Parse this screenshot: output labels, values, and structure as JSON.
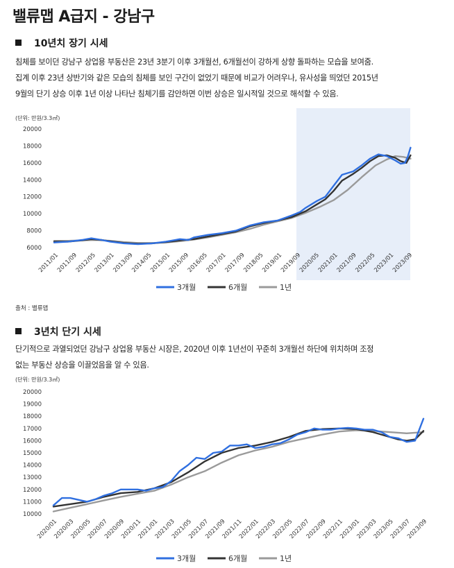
{
  "title": "밸류맵 A급지 - 강남구",
  "section1": {
    "heading": "10년치 장기 시세",
    "lines": [
      "침체를 보이던 강남구 상업용 부동산은 23년 3분기 이후 3개월선, 6개월선이 강하게 상향 돌파하는 모습을 보여줌.",
      "집계 이후 23년 상반기와 같은 모습의 침체를 보인 구간이 없었기 때문에 비교가 어려우나, 유사성을 띄었던 2015년",
      "9월의 단기 상승 이후 1년 이상 나타난 침체기를 감안하면 이번 상승은 일시적일 것으로 해석할 수 있음."
    ],
    "unit": "(단위: 만원/3.3㎡)",
    "source": "출처 : 밸류맵"
  },
  "section2": {
    "heading": "3년치 단기 시세",
    "lines": [
      "단기적으로 과열되었던 강남구 상업용 부동산 시장은, 2020년 이후 1년선이 꾸준히 3개월선 하단에 위치하며 조정",
      "없는 부동산 상승을 이끌었음을 알 수 있음."
    ],
    "unit": "(단위: 만원/3.3㎡)"
  },
  "colors": {
    "m3": "#2f6fe0",
    "m6": "#333333",
    "y1": "#9a9a9a",
    "highlight": "#e7eef9"
  },
  "chart_data": [
    {
      "type": "line",
      "ylim": [
        6000,
        20000
      ],
      "yticks": [
        "20000",
        "18000",
        "16000",
        "14000",
        "12000",
        "10000",
        "8000",
        "6000"
      ],
      "x_labels": [
        "2011/01",
        "2011/09",
        "2012/05",
        "2013/01",
        "2013/09",
        "2014/05",
        "2015/01",
        "2015/09",
        "2016/05",
        "2017/01",
        "2017/09",
        "2018/05",
        "2019/01",
        "2019/09",
        "2020/05",
        "2021/01",
        "2021/09",
        "2022/05",
        "2023/01",
        "2023/09"
      ],
      "highlight_range": [
        "2019/09",
        "2023/09"
      ],
      "series": [
        {
          "name": "3개월",
          "key": "m3",
          "x": [
            2011.0,
            2011.5,
            2012.0,
            2012.33,
            2012.7,
            2013.0,
            2013.5,
            2014.0,
            2014.5,
            2015.0,
            2015.5,
            2015.8,
            2016.0,
            2016.5,
            2017.0,
            2017.5,
            2018.0,
            2018.5,
            2019.0,
            2019.5,
            2019.8,
            2020.0,
            2020.4,
            2020.7,
            2021.0,
            2021.3,
            2021.7,
            2022.0,
            2022.3,
            2022.6,
            2022.9,
            2023.2,
            2023.4,
            2023.55,
            2023.65,
            2023.75
          ],
          "y": [
            6600,
            6700,
            6900,
            7100,
            6900,
            6700,
            6500,
            6400,
            6500,
            6700,
            7000,
            6900,
            7200,
            7500,
            7700,
            8000,
            8600,
            9000,
            9200,
            9800,
            10200,
            10700,
            11500,
            12000,
            13300,
            14600,
            15000,
            15700,
            16500,
            17000,
            16800,
            16300,
            15900,
            16000,
            16700,
            17800
          ]
        },
        {
          "name": "6개월",
          "key": "m6",
          "x": [
            2011.0,
            2011.5,
            2012.0,
            2012.33,
            2012.7,
            2013.0,
            2013.5,
            2014.0,
            2014.5,
            2015.0,
            2015.5,
            2016.0,
            2016.5,
            2017.0,
            2017.5,
            2018.0,
            2018.5,
            2019.0,
            2019.5,
            2020.0,
            2020.4,
            2020.7,
            2021.0,
            2021.3,
            2021.7,
            2022.0,
            2022.3,
            2022.6,
            2022.9,
            2023.2,
            2023.4,
            2023.6,
            2023.75
          ],
          "y": [
            6700,
            6700,
            6850,
            7000,
            6900,
            6750,
            6550,
            6450,
            6500,
            6650,
            6850,
            7000,
            7300,
            7600,
            7900,
            8500,
            8900,
            9200,
            9600,
            10300,
            11100,
            11700,
            12700,
            13900,
            14700,
            15400,
            16200,
            16800,
            16900,
            16600,
            16200,
            16000,
            16900
          ]
        },
        {
          "name": "1년",
          "key": "y1",
          "x": [
            2011.0,
            2011.5,
            2012.0,
            2012.5,
            2013.0,
            2013.5,
            2014.0,
            2014.5,
            2015.0,
            2015.5,
            2016.0,
            2016.5,
            2017.0,
            2017.5,
            2018.0,
            2018.5,
            2019.0,
            2019.5,
            2020.0,
            2020.5,
            2021.0,
            2021.5,
            2022.0,
            2022.5,
            2022.9,
            2023.2,
            2023.5,
            2023.75
          ],
          "y": [
            6800,
            6800,
            6850,
            6900,
            6800,
            6650,
            6550,
            6550,
            6600,
            6750,
            6950,
            7200,
            7500,
            7800,
            8200,
            8700,
            9100,
            9500,
            10100,
            10800,
            11600,
            12800,
            14300,
            15700,
            16400,
            16800,
            16700,
            16500
          ]
        }
      ]
    },
    {
      "type": "line",
      "ylim": [
        10000,
        20000
      ],
      "yticks": [
        "20000",
        "19000",
        "18000",
        "17000",
        "16000",
        "15000",
        "14000",
        "13000",
        "12000",
        "11000",
        "10000"
      ],
      "x_labels": [
        "2020/01",
        "2020/03",
        "2020/05",
        "2020/07",
        "2020/09",
        "2020/11",
        "2021/01",
        "2021/03",
        "2021/05",
        "2021/07",
        "2021/09",
        "2021/11",
        "2022/01",
        "2022/03",
        "2022/05",
        "2022/07",
        "2022/09",
        "2022/11",
        "2023/01",
        "2023/03",
        "2023/05",
        "2023/07",
        "2023/09"
      ],
      "series": [
        {
          "name": "3개월",
          "key": "m3",
          "x": [
            0,
            0.5,
            1,
            2,
            2.5,
            3,
            3.5,
            4,
            4.5,
            5,
            5.5,
            6,
            6.5,
            7,
            7.5,
            8,
            8.5,
            9,
            9.5,
            10,
            10.5,
            11,
            11.5,
            12,
            12.5,
            13,
            13.5,
            14,
            14.5,
            15,
            15.5,
            16,
            16.5,
            17,
            17.5,
            18,
            18.5,
            19,
            19.5,
            20,
            20.5,
            21,
            21.5,
            22
          ],
          "y": [
            10700,
            11300,
            11300,
            11000,
            11200,
            11500,
            11700,
            12000,
            12000,
            12000,
            11900,
            12100,
            12200,
            12700,
            13500,
            14000,
            14600,
            14500,
            15000,
            15100,
            15600,
            15600,
            15700,
            15400,
            15500,
            15700,
            15800,
            16100,
            16500,
            16700,
            17000,
            16900,
            16900,
            17000,
            17050,
            17000,
            16900,
            16900,
            16700,
            16300,
            16200,
            15900,
            16000,
            17800
          ]
        },
        {
          "name": "6개월",
          "key": "m6",
          "x": [
            0,
            1,
            2,
            3,
            4,
            5,
            6,
            7,
            8,
            9,
            10,
            11,
            12,
            13,
            14,
            15,
            16,
            17,
            18,
            19,
            20,
            20.5,
            21,
            21.5,
            22
          ],
          "y": [
            10600,
            10800,
            11000,
            11400,
            11700,
            11800,
            12100,
            12600,
            13400,
            14300,
            15000,
            15400,
            15600,
            15900,
            16300,
            16800,
            16950,
            17000,
            16950,
            16700,
            16300,
            16100,
            16000,
            16100,
            16800
          ]
        },
        {
          "name": "1년",
          "key": "y1",
          "x": [
            0,
            1,
            2,
            3,
            4,
            5,
            6,
            7,
            8,
            9,
            10,
            11,
            12,
            13,
            14,
            15,
            16,
            17,
            18,
            19,
            20,
            21,
            22
          ],
          "y": [
            10200,
            10500,
            10800,
            11100,
            11400,
            11650,
            11900,
            12400,
            13000,
            13500,
            14200,
            14800,
            15200,
            15500,
            15900,
            16200,
            16500,
            16750,
            16850,
            16800,
            16700,
            16600,
            16700
          ]
        }
      ]
    }
  ]
}
